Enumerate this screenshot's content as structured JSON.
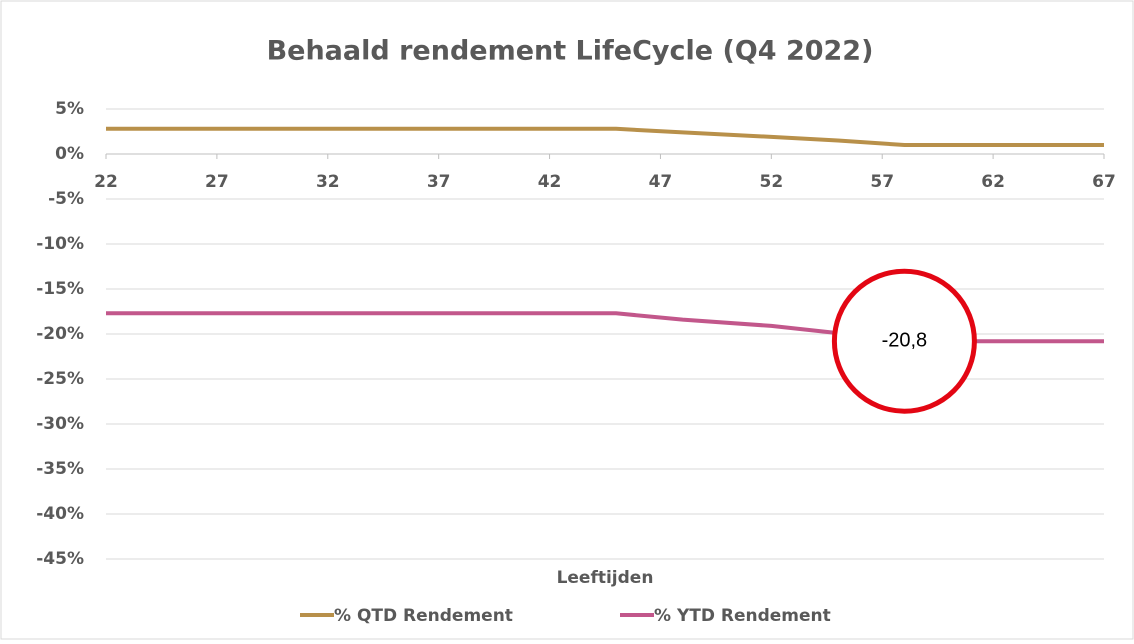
{
  "chart_data": {
    "type": "line",
    "title": "Behaald rendement LifeCycle (Q4 2022)",
    "x_label": "Leeftijden",
    "x": [
      22,
      45,
      48,
      52,
      55,
      58,
      67
    ],
    "series": [
      {
        "name": "% QTD Rendement",
        "color": "#b8904a",
        "values": [
          2.8,
          2.8,
          2.4,
          1.9,
          1.5,
          1.0,
          1.0
        ]
      },
      {
        "name": "% YTD Rendement",
        "color": "#c2578b",
        "values": [
          -17.7,
          -17.7,
          -18.4,
          -19.1,
          -19.9,
          -20.8,
          -20.8
        ]
      }
    ],
    "xlim": [
      22,
      67
    ],
    "xticks": [
      22,
      27,
      32,
      37,
      42,
      47,
      52,
      57,
      62,
      67
    ],
    "ylim": [
      -45,
      5
    ],
    "yticks": [
      {
        "value": 5,
        "label": "5%"
      },
      {
        "value": 0,
        "label": "0%"
      },
      {
        "value": -5,
        "label": "-5%"
      },
      {
        "value": -10,
        "label": "-10%"
      },
      {
        "value": -15,
        "label": "-15%"
      },
      {
        "value": -20,
        "label": "-20%"
      },
      {
        "value": -25,
        "label": "-25%"
      },
      {
        "value": -30,
        "label": "-30%"
      },
      {
        "value": -35,
        "label": "-35%"
      },
      {
        "value": -40,
        "label": "-40%"
      },
      {
        "value": -45,
        "label": "-45%"
      }
    ],
    "grid": true,
    "legend": "bottom",
    "annotations": [
      {
        "text": "-20,8",
        "x": 58,
        "y": -20.8,
        "color": "#e30613"
      }
    ]
  }
}
